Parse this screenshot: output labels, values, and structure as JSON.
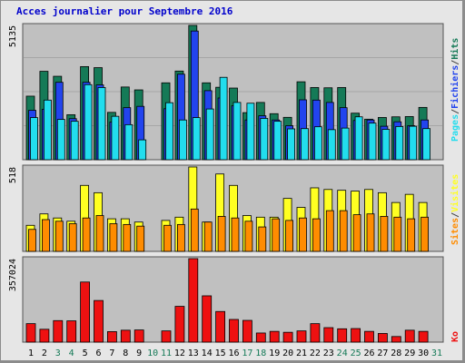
{
  "title": "Acces journalier pour Septembre 2016",
  "colors": {
    "background": "#e6e6e6",
    "panel": "#c0c0c0",
    "hits": "#157a57",
    "files": "#2244ee",
    "pages": "#22ddee",
    "visits": "#ffff22",
    "sites": "#ff8c00",
    "ko": "#ee1111",
    "title": "#0000cc",
    "weekend_day": "#157a57"
  },
  "chart_data": [
    {
      "type": "bar",
      "panel": "top",
      "ymax_label": "5135",
      "ylim": [
        0,
        5135
      ],
      "legend": {
        "pages": "Pages",
        "files": "Fichiers",
        "hits": "Hits",
        "sep": "/"
      },
      "categories": [
        "1",
        "2",
        "3",
        "4",
        "5",
        "6",
        "7",
        "8",
        "9",
        "10",
        "11",
        "12",
        "13",
        "14",
        "15",
        "16",
        "17",
        "18",
        "19",
        "20",
        "21",
        "22",
        "23",
        "24",
        "25",
        "26",
        "27",
        "28",
        "29",
        "30",
        "31"
      ],
      "weekend_days": [
        "3",
        "4",
        "10",
        "11",
        "17",
        "18",
        "24",
        "25",
        "31"
      ],
      "series": [
        {
          "name": "Hits",
          "key": "hits",
          "values": [
            2430,
            3380,
            3190,
            1720,
            3560,
            3520,
            1810,
            2780,
            2670,
            0,
            2940,
            3390,
            5135,
            2940,
            2770,
            2740,
            1800,
            2190,
            1760,
            1620,
            2980,
            2760,
            2750,
            2760,
            1780,
            1550,
            1615,
            1640,
            1650,
            2000,
            0
          ]
        },
        {
          "name": "Fichiers",
          "key": "files",
          "values": [
            1890,
            1930,
            2960,
            1570,
            2960,
            2860,
            1440,
            1990,
            2040,
            0,
            1950,
            3270,
            4920,
            2640,
            2360,
            2060,
            1520,
            1680,
            1520,
            1300,
            2290,
            2280,
            2190,
            1990,
            1500,
            1520,
            1280,
            1450,
            1300,
            1520,
            0
          ]
        },
        {
          "name": "Pages",
          "key": "pages",
          "values": [
            1610,
            2280,
            1540,
            1470,
            2870,
            2760,
            1660,
            1340,
            760,
            0,
            2180,
            1520,
            1610,
            1940,
            3150,
            2190,
            2160,
            1580,
            1470,
            1180,
            1190,
            1260,
            1150,
            1210,
            1640,
            1400,
            1160,
            1270,
            1280,
            1190,
            0
          ]
        }
      ]
    },
    {
      "type": "bar",
      "panel": "middle",
      "ymax_label": "518",
      "ylim": [
        0,
        518
      ],
      "legend": {
        "sites": "Sites",
        "visites": "Visites",
        "sep": "/"
      },
      "categories": [
        "1",
        "2",
        "3",
        "4",
        "5",
        "6",
        "7",
        "8",
        "9",
        "10",
        "11",
        "12",
        "13",
        "14",
        "15",
        "16",
        "17",
        "18",
        "19",
        "20",
        "21",
        "22",
        "23",
        "24",
        "25",
        "26",
        "27",
        "28",
        "29",
        "30",
        "31"
      ],
      "series": [
        {
          "name": "Visites",
          "key": "visits",
          "values": [
            160,
            230,
            205,
            185,
            405,
            360,
            200,
            200,
            180,
            0,
            190,
            210,
            518,
            180,
            475,
            405,
            220,
            210,
            210,
            325,
            270,
            390,
            380,
            375,
            370,
            380,
            360,
            300,
            350,
            300,
            0
          ]
        },
        {
          "name": "Sites",
          "key": "sites",
          "values": [
            135,
            195,
            185,
            170,
            205,
            220,
            170,
            165,
            155,
            0,
            160,
            165,
            260,
            180,
            215,
            205,
            185,
            150,
            200,
            190,
            205,
            200,
            250,
            250,
            225,
            230,
            215,
            210,
            200,
            210,
            0
          ]
        }
      ]
    },
    {
      "type": "bar",
      "panel": "bottom",
      "ymax_label": "357024",
      "ylim": [
        0,
        357024
      ],
      "legend": {
        "ko": "Ko"
      },
      "categories": [
        "1",
        "2",
        "3",
        "4",
        "5",
        "6",
        "7",
        "8",
        "9",
        "10",
        "11",
        "12",
        "13",
        "14",
        "15",
        "16",
        "17",
        "18",
        "19",
        "20",
        "21",
        "22",
        "23",
        "24",
        "25",
        "26",
        "27",
        "28",
        "29",
        "30",
        "31"
      ],
      "series": [
        {
          "name": "Ko",
          "key": "ko",
          "values": [
            79000,
            55000,
            92000,
            91000,
            257000,
            178000,
            45000,
            51000,
            52000,
            0,
            48000,
            153000,
            357024,
            198000,
            131000,
            97000,
            93000,
            39000,
            46000,
            42000,
            48000,
            79000,
            62000,
            57000,
            58000,
            46000,
            37000,
            24000,
            51000,
            46000,
            0
          ]
        }
      ]
    }
  ]
}
